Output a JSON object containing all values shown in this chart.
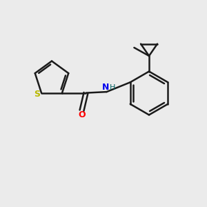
{
  "bg_color": "#ebebeb",
  "bond_color": "#1a1a1a",
  "bond_width": 1.8,
  "S_color": "#b8b800",
  "O_color": "#ff0000",
  "N_color": "#0000ee",
  "H_color": "#006060",
  "fig_width": 3.0,
  "fig_height": 3.0,
  "dpi": 100,
  "xlim": [
    0,
    10
  ],
  "ylim": [
    0,
    10
  ]
}
